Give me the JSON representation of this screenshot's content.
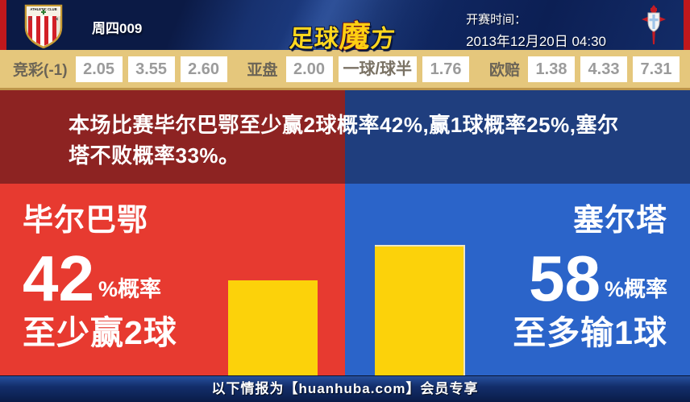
{
  "header": {
    "match_code": "周四009",
    "logo": {
      "part1": "足球",
      "part2": "魔",
      "part3": "方"
    },
    "kickoff_label": "开赛时间：",
    "kickoff_time": "2013年12月20日 04:30",
    "home_team_crest": "athletic-bilbao-crest",
    "away_team_crest": "celta-vigo-crest"
  },
  "odds": {
    "groups": [
      {
        "label": "竞彩(-1)",
        "values": [
          "2.05",
          "3.55",
          "2.60"
        ]
      },
      {
        "label": "亚盘",
        "values": [
          "2.00",
          "一球/球半",
          "1.76"
        ]
      },
      {
        "label": "欧赔",
        "values": [
          "1.38",
          "4.33",
          "7.31"
        ]
      }
    ]
  },
  "headline": {
    "text": "本场比赛毕尔巴鄂至少赢2球概率42%,赢1球概率25%,塞尔塔不败概率33%。"
  },
  "panels": {
    "left": {
      "team": "毕尔巴鄂",
      "probability": 42,
      "suffix": "%概率",
      "outcome": "至少赢2球"
    },
    "right": {
      "team": "塞尔塔",
      "probability": 58,
      "suffix": "%概率",
      "outcome": "至多输1球"
    }
  },
  "footer": {
    "text": "以下情报为【huanhuba.com】会员专享"
  },
  "colors": {
    "header_navy": "#0e2052",
    "edge_red": "#c0181c",
    "odds_bg": "#e5c77c",
    "headline_red": "#8d2322",
    "headline_blue": "#1f3e7e",
    "panel_red": "#e73a30",
    "panel_blue": "#2b64c9",
    "bar_gold": "#fcd20a",
    "logo_gold": "#ffd71e"
  },
  "chart_data": {
    "type": "bar",
    "categories": [
      "毕尔巴鄂至少赢2球",
      "塞尔塔至多输1球"
    ],
    "values": [
      42,
      58
    ],
    "value_unit": "%概率",
    "ylim": [
      0,
      100
    ],
    "bar_color": "#fcd20a"
  }
}
